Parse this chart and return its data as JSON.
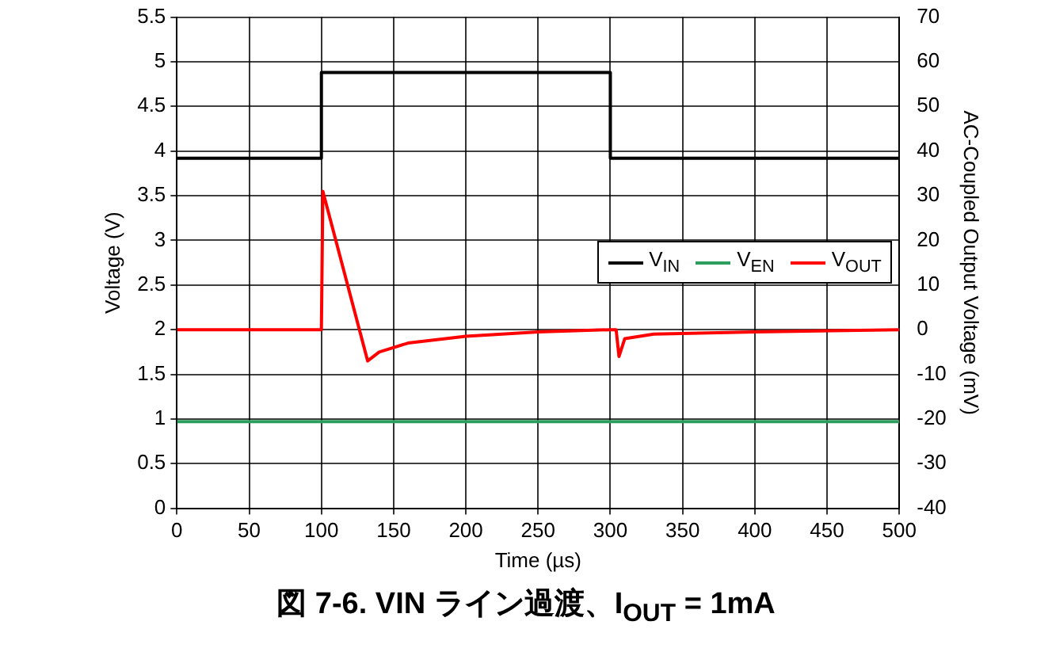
{
  "chart_data": {
    "type": "line",
    "title": "図 7-6. VIN ライン過渡、I$_{OUT}$ = 1mA",
    "xlabel": "Time (µs)",
    "ylabel": "Voltage (V)",
    "y2label": "AC-Coupled Output Voltage (mV)",
    "xlim": [
      0,
      500
    ],
    "xticks": [
      0,
      50,
      100,
      150,
      200,
      250,
      300,
      350,
      400,
      450,
      500
    ],
    "ylim": [
      0,
      5.5
    ],
    "yticks": [
      0,
      0.5,
      1,
      1.5,
      2,
      2.5,
      3,
      3.5,
      4,
      4.5,
      5,
      5.5
    ],
    "y2lim": [
      -40,
      70
    ],
    "y2ticks": [
      -40,
      -30,
      -20,
      -10,
      0,
      10,
      20,
      30,
      40,
      50,
      60,
      70
    ],
    "grid": true,
    "legend": "right",
    "marker": "none",
    "line_style": "solid",
    "series": [
      {
        "name": "V$_{IN}$",
        "color": "#000000",
        "x": [
          0,
          100,
          100,
          300,
          300,
          500
        ],
        "values": [
          3.92,
          3.92,
          4.88,
          4.88,
          3.92,
          3.92
        ]
      },
      {
        "name": "V$_{EN}$",
        "color": "#2e9e5e",
        "x": [
          0,
          500
        ],
        "values": [
          0.97,
          0.97
        ]
      },
      {
        "name": "V$_{OUT}$",
        "color": "#ff0000",
        "axis": "y2",
        "x": [
          0,
          100,
          101,
          132,
          140,
          160,
          200,
          250,
          300,
          304,
          306,
          310,
          330,
          400,
          500
        ],
        "values": [
          0,
          0,
          31,
          -7,
          -5,
          -3,
          -1.5,
          -0.5,
          0,
          0,
          -6,
          -2,
          -1,
          -0.5,
          0
        ]
      }
    ]
  }
}
